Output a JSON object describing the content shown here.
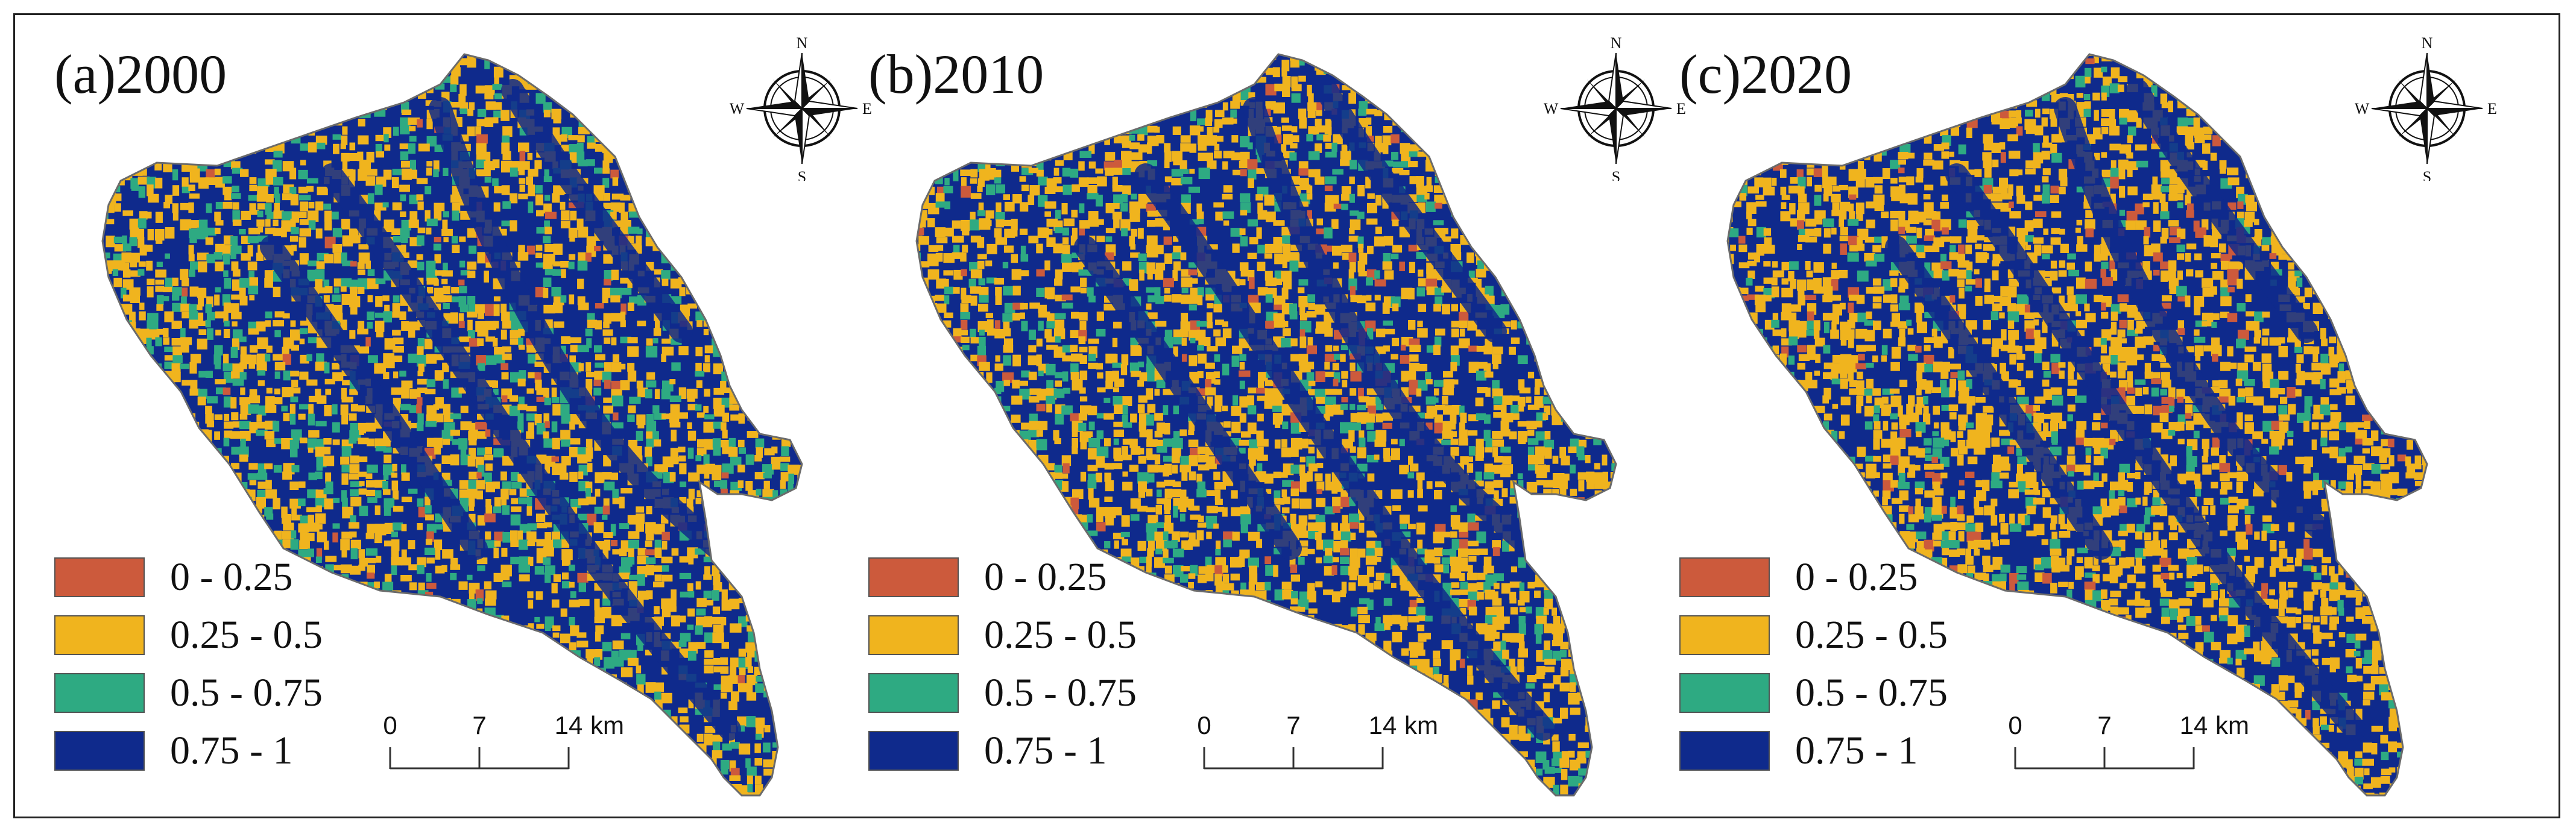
{
  "panels": [
    {
      "title": "(a)2000",
      "mix": {
        "red": 0.03,
        "orange": 0.4,
        "green": 0.17,
        "blue": 0.4
      }
    },
    {
      "title": "(b)2010",
      "mix": {
        "red": 0.04,
        "orange": 0.42,
        "green": 0.13,
        "blue": 0.41
      }
    },
    {
      "title": "(c)2020",
      "mix": {
        "red": 0.05,
        "orange": 0.45,
        "green": 0.09,
        "blue": 0.41
      }
    }
  ],
  "compass": {
    "north": "N",
    "south": "S",
    "east": "E",
    "west": "W"
  },
  "legend": [
    {
      "label": "0 - 0.25",
      "color": "#cc5a3c"
    },
    {
      "label": "0.25 - 0.5",
      "color": "#f0b41e"
    },
    {
      "label": "0.5 - 0.75",
      "color": "#2eaa82"
    },
    {
      "label": "0.75 - 1",
      "color": "#0f2a8c"
    }
  ],
  "scalebar": {
    "ticks": [
      "0",
      "7",
      "14"
    ],
    "unit": "km"
  }
}
